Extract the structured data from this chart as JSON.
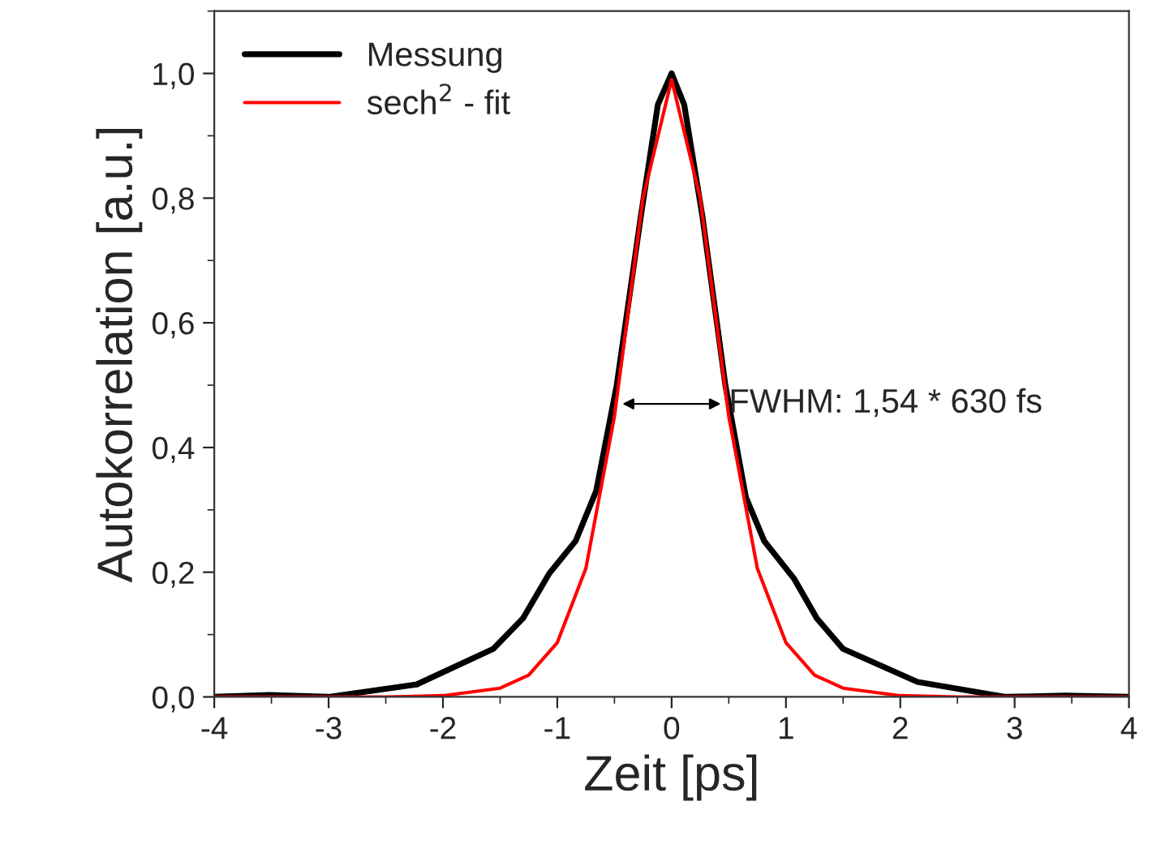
{
  "chart_data": {
    "type": "line",
    "xlabel": "Zeit [ps]",
    "ylabel": "Autokorrelation [a.u.]",
    "xlim": [
      -4,
      4
    ],
    "xticks": [
      -4,
      -3,
      -2,
      -1,
      0,
      1,
      2,
      3,
      4
    ],
    "ylim": [
      0,
      1.1
    ],
    "yticks": [
      {
        "value": 0,
        "label": "0,0"
      },
      {
        "value": 0.2,
        "label": "0,2"
      },
      {
        "value": 0.4,
        "label": "0,4"
      },
      {
        "value": 0.6,
        "label": "0,6"
      },
      {
        "value": 0.8,
        "label": "0,8"
      },
      {
        "value": 1.0,
        "label": "1,0"
      }
    ],
    "series": [
      {
        "name": "Messung",
        "color": "#000000",
        "x": [
          -4,
          -3.52,
          -3,
          -2.23,
          -1.56,
          -1.3,
          -1.07,
          -0.84,
          -0.66,
          -0.48,
          -0.27,
          -0.12,
          0,
          0.11,
          0.27,
          0.47,
          0.65,
          0.81,
          1.07,
          1.27,
          1.5,
          2.15,
          2.92,
          3.44,
          4
        ],
        "values": [
          0,
          0.003,
          0,
          0.02,
          0.077,
          0.126,
          0.198,
          0.25,
          0.33,
          0.5,
          0.77,
          0.95,
          1.0,
          0.95,
          0.77,
          0.5,
          0.32,
          0.25,
          0.19,
          0.126,
          0.077,
          0.024,
          0,
          0.002,
          0
        ]
      },
      {
        "name": "sech$^{2}$ - fit",
        "color": "#ff0000",
        "x": [
          -4,
          -2.5,
          -2,
          -1.5,
          -1.25,
          -1,
          -0.75,
          -0.5,
          -0.25,
          0,
          0.25,
          0.5,
          0.75,
          1,
          1.25,
          1.5,
          2,
          2.5,
          4
        ],
        "values": [
          0,
          0,
          0.002,
          0.014,
          0.035,
          0.087,
          0.206,
          0.45,
          0.8,
          0.99,
          0.8,
          0.45,
          0.206,
          0.087,
          0.035,
          0.014,
          0.002,
          0,
          0
        ]
      }
    ],
    "annotations": [
      {
        "text": "FWHM: 1,54 * 630 fs",
        "x": 0.47,
        "y": 0.47
      }
    ],
    "legend": "top left",
    "grid": false,
    "line_style": "solid",
    "marker": "none"
  }
}
